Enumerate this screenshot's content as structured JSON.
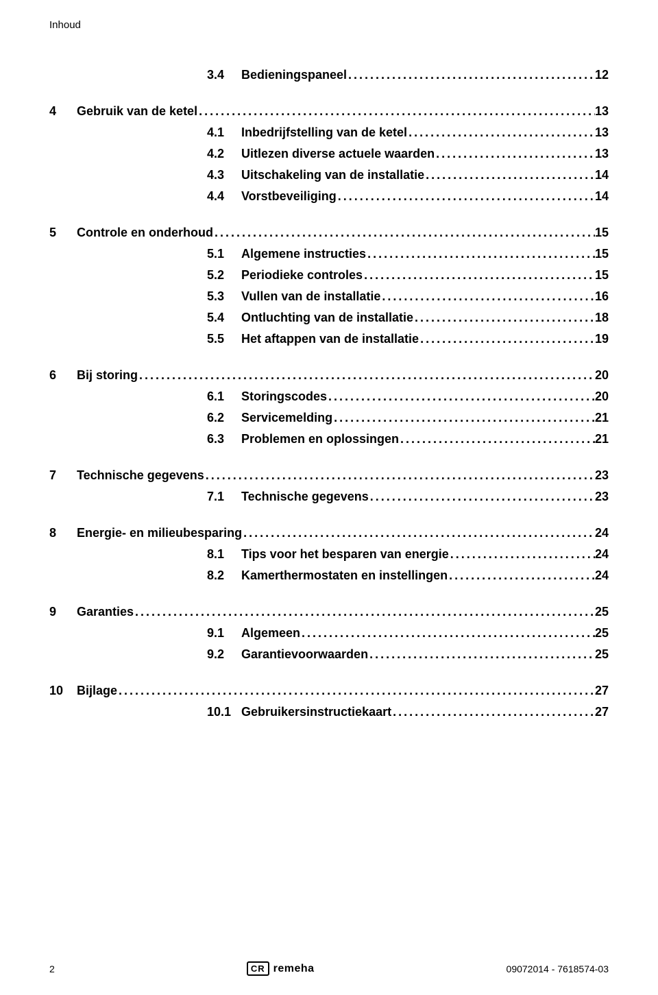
{
  "header": {
    "title": "Inhoud"
  },
  "toc": [
    {
      "level": 2,
      "num": "3.4",
      "title": "Bedieningspaneel",
      "page": "12"
    },
    {
      "level": 1,
      "num": "4",
      "title": "Gebruik van de ketel",
      "page": "13",
      "gapBefore": "big"
    },
    {
      "level": 2,
      "num": "4.1",
      "title": "Inbedrijfstelling van de ketel",
      "page": "13"
    },
    {
      "level": 2,
      "num": "4.2",
      "title": "Uitlezen diverse actuele waarden",
      "page": "13"
    },
    {
      "level": 2,
      "num": "4.3",
      "title": "Uitschakeling van de installatie",
      "page": "14"
    },
    {
      "level": 2,
      "num": "4.4",
      "title": "Vorstbeveiliging",
      "page": "14"
    },
    {
      "level": 1,
      "num": "5",
      "title": "Controle en onderhoud",
      "page": "15",
      "gapBefore": "big"
    },
    {
      "level": 2,
      "num": "5.1",
      "title": "Algemene instructies",
      "page": "15"
    },
    {
      "level": 2,
      "num": "5.2",
      "title": "Periodieke controles",
      "page": "15"
    },
    {
      "level": 2,
      "num": "5.3",
      "title": "Vullen van de installatie",
      "page": "16"
    },
    {
      "level": 2,
      "num": "5.4",
      "title": "Ontluchting van de installatie",
      "page": "18"
    },
    {
      "level": 2,
      "num": "5.5",
      "title": "Het aftappen van de installatie",
      "page": "19"
    },
    {
      "level": 1,
      "num": "6",
      "title": "Bij storing",
      "page": "20",
      "gapBefore": "big"
    },
    {
      "level": 2,
      "num": "6.1",
      "title": "Storingscodes",
      "page": "20"
    },
    {
      "level": 2,
      "num": "6.2",
      "title": "Servicemelding",
      "page": "21"
    },
    {
      "level": 2,
      "num": "6.3",
      "title": "Problemen en oplossingen",
      "page": "21"
    },
    {
      "level": 1,
      "num": "7",
      "title": "Technische gegevens",
      "page": "23",
      "gapBefore": "big"
    },
    {
      "level": 2,
      "num": "7.1",
      "title": "Technische gegevens",
      "page": "23"
    },
    {
      "level": 1,
      "num": "8",
      "title": "Energie- en milieubesparing",
      "page": "24",
      "gapBefore": "big"
    },
    {
      "level": 2,
      "num": "8.1",
      "title": "Tips voor het besparen van energie",
      "page": "24"
    },
    {
      "level": 2,
      "num": "8.2",
      "title": "Kamerthermostaten en instellingen",
      "page": "24"
    },
    {
      "level": 1,
      "num": "9",
      "title": "Garanties",
      "page": "25",
      "gapBefore": "big"
    },
    {
      "level": 2,
      "num": "9.1",
      "title": "Algemeen",
      "page": "25"
    },
    {
      "level": 2,
      "num": "9.2",
      "title": "Garantievoorwaarden",
      "page": "25"
    },
    {
      "level": 1,
      "num": "10",
      "title": "Bijlage",
      "page": "27",
      "gapBefore": "big"
    },
    {
      "level": 2,
      "num": "10.1",
      "title": "Gebruikersinstructiekaart",
      "page": "27"
    }
  ],
  "dots_fill": "..................................................................................................................................................................................................",
  "footer": {
    "page_number": "2",
    "logo_badge": "CR",
    "logo_text": "remeha",
    "doc_ref": "09072014 - 7618574-03"
  }
}
